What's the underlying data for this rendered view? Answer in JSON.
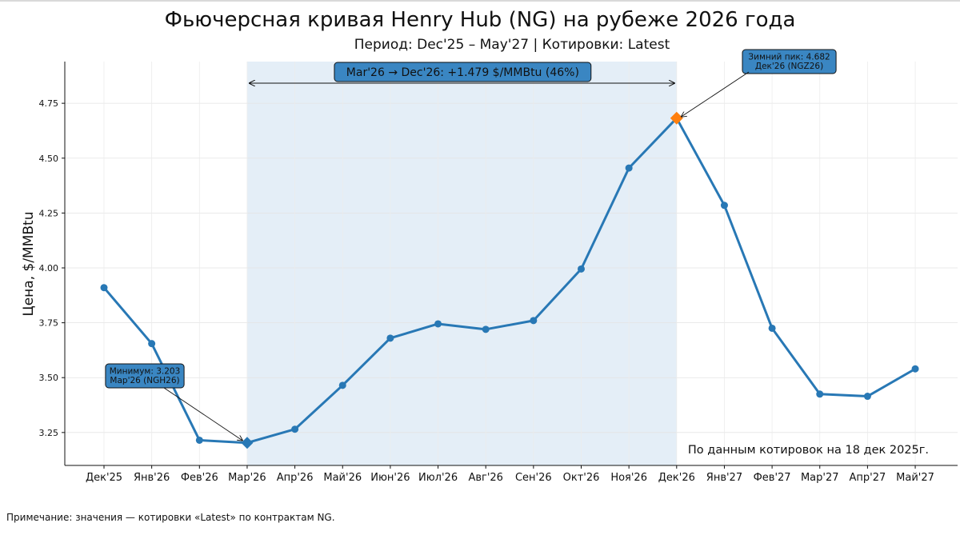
{
  "title": "Фьючерсная кривая Henry Hub (NG) на рубеже 2026 года",
  "subtitle": "Период: Dec'25 – May'27 | Котировки: Latest",
  "note": "Примечание: значения — котировки «Latest» по контрактам NG.",
  "colors": {
    "line": "#2878b5",
    "peak_marker": "#ff7f0e",
    "min_marker": "#2878b5",
    "shade": "#e4eef7",
    "box_fill": "#3a86c2"
  },
  "chart_data": {
    "type": "line",
    "title": "Фьючерсная кривая Henry Hub (NG) на рубеже 2026 года",
    "subtitle": "Период: Dec'25 – May'27 | Котировки: Latest",
    "xlabel": "",
    "ylabel": "Цена, $/MMBtu",
    "categories": [
      "Дек'25",
      "Янв'26",
      "Фев'26",
      "Мар'26",
      "Апр'26",
      "Май'26",
      "Июн'26",
      "Июл'26",
      "Авг'26",
      "Сен'26",
      "Окт'26",
      "Ноя'26",
      "Дек'26",
      "Янв'27",
      "Фев'27",
      "Мар'27",
      "Апр'27",
      "Май'27"
    ],
    "series": [
      {
        "values": [
          3.91,
          3.655,
          3.215,
          3.203,
          3.265,
          3.465,
          3.68,
          3.745,
          3.72,
          3.76,
          3.995,
          4.455,
          4.682,
          4.285,
          3.725,
          3.425,
          3.415,
          3.54
        ]
      }
    ],
    "ylim": [
      3.1,
      4.94
    ],
    "yticks": [
      3.25,
      3.5,
      3.75,
      4.0,
      4.25,
      4.5,
      4.75
    ],
    "ytick_labels": [
      "3.25",
      "3.50",
      "3.75",
      "4.00",
      "4.25",
      "4.50",
      "4.75"
    ],
    "grid": true,
    "shaded_range": [
      "Мар'26",
      "Дек'26"
    ],
    "annotations": {
      "range_label": "Mar'26 → Dec'26: +1.479 $/MMBtu (46%)",
      "min_label": [
        "Минимум: 3.203",
        "Мар'26 (NGH26)"
      ],
      "max_label": [
        "Зимний пик: 4.682",
        "Дек'26 (NGZ26)"
      ],
      "source_label": "По данным котировок на 18 дек 2025г."
    }
  }
}
